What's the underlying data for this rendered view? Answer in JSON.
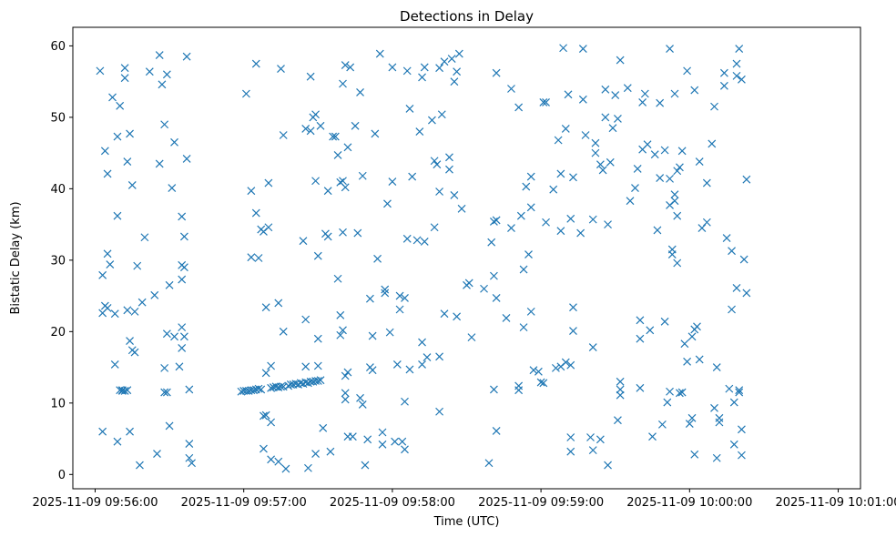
{
  "chart_data": {
    "type": "scatter",
    "title": "Detections in Delay",
    "xlabel": "Time (UTC)",
    "ylabel": "Bistatic Delay (km)",
    "marker": "x",
    "color": "#1f77b4",
    "grid": false,
    "legend": "none",
    "xlim": [
      "2025-11-09 09:55:51",
      "2025-11-09 10:01:09"
    ],
    "ylim": [
      -2.0,
      62.6
    ],
    "x_ticks": [
      "2025-11-09 09:56:00",
      "2025-11-09 09:57:00",
      "2025-11-09 09:58:00",
      "2025-11-09 09:59:00",
      "2025-11-09 10:00:00",
      "2025-11-09 10:01:00"
    ],
    "y_ticks": [
      0,
      10,
      20,
      30,
      40,
      50,
      60
    ],
    "points": [
      [
        "09:56:02",
        56.5
      ],
      [
        "09:56:03",
        22.6
      ],
      [
        "09:56:03",
        6.0
      ],
      [
        "09:56:03",
        27.9
      ],
      [
        "09:56:04",
        23.6
      ],
      [
        "09:56:04",
        45.3
      ],
      [
        "09:56:05",
        30.9
      ],
      [
        "09:56:05",
        42.1
      ],
      [
        "09:56:05",
        23.3
      ],
      [
        "09:56:06",
        29.4
      ],
      [
        "09:56:07",
        52.8
      ],
      [
        "09:56:08",
        22.5
      ],
      [
        "09:56:08",
        15.4
      ],
      [
        "09:56:09",
        47.3
      ],
      [
        "09:56:09",
        36.2
      ],
      [
        "09:56:09",
        4.6
      ],
      [
        "09:56:10",
        51.6
      ],
      [
        "09:56:10",
        11.8
      ],
      [
        "09:56:11",
        11.7
      ],
      [
        "09:56:11",
        11.8
      ],
      [
        "09:56:12",
        55.5
      ],
      [
        "09:56:12",
        56.9
      ],
      [
        "09:56:12",
        11.7
      ],
      [
        "09:56:13",
        11.8
      ],
      [
        "09:56:13",
        23.0
      ],
      [
        "09:56:13",
        43.8
      ],
      [
        "09:56:14",
        18.7
      ],
      [
        "09:56:14",
        6.0
      ],
      [
        "09:56:14",
        47.7
      ],
      [
        "09:56:15",
        17.4
      ],
      [
        "09:56:15",
        40.5
      ],
      [
        "09:56:16",
        22.8
      ],
      [
        "09:56:16",
        17.1
      ],
      [
        "09:56:17",
        29.2
      ],
      [
        "09:56:18",
        1.3
      ],
      [
        "09:56:19",
        24.1
      ],
      [
        "09:56:20",
        33.2
      ],
      [
        "09:56:22",
        56.4
      ],
      [
        "09:56:24",
        25.1
      ],
      [
        "09:56:25",
        2.9
      ],
      [
        "09:56:26",
        43.5
      ],
      [
        "09:56:26",
        58.7
      ],
      [
        "09:56:27",
        54.6
      ],
      [
        "09:56:28",
        49.0
      ],
      [
        "09:56:28",
        14.9
      ],
      [
        "09:56:28",
        11.5
      ],
      [
        "09:56:29",
        11.5
      ],
      [
        "09:56:29",
        19.7
      ],
      [
        "09:56:29",
        56.0
      ],
      [
        "09:56:30",
        6.8
      ],
      [
        "09:56:30",
        26.5
      ],
      [
        "09:56:31",
        40.1
      ],
      [
        "09:56:32",
        46.5
      ],
      [
        "09:56:32",
        19.3
      ],
      [
        "09:56:34",
        15.1
      ],
      [
        "09:56:35",
        29.3
      ],
      [
        "09:56:35",
        20.6
      ],
      [
        "09:56:35",
        36.1
      ],
      [
        "09:56:35",
        27.3
      ],
      [
        "09:56:35",
        17.7
      ],
      [
        "09:56:36",
        29.0
      ],
      [
        "09:56:36",
        33.3
      ],
      [
        "09:56:36",
        19.3
      ],
      [
        "09:56:37",
        58.5
      ],
      [
        "09:56:37",
        44.2
      ],
      [
        "09:56:38",
        11.9
      ],
      [
        "09:56:38",
        2.3
      ],
      [
        "09:56:38",
        4.3
      ],
      [
        "09:56:39",
        1.6
      ],
      [
        "09:56:59",
        11.6
      ],
      [
        "09:57:00",
        11.7
      ],
      [
        "09:57:01",
        11.7
      ],
      [
        "09:57:02",
        11.7
      ],
      [
        "09:57:03",
        11.8
      ],
      [
        "09:57:04",
        11.8
      ],
      [
        "09:57:05",
        11.9
      ],
      [
        "09:57:06",
        12.0
      ],
      [
        "09:57:07",
        11.9
      ],
      [
        "09:57:01",
        53.3
      ],
      [
        "09:57:03",
        30.4
      ],
      [
        "09:57:03",
        39.7
      ],
      [
        "09:57:05",
        57.5
      ],
      [
        "09:57:05",
        36.6
      ],
      [
        "09:57:06",
        30.3
      ],
      [
        "09:57:07",
        34.3
      ],
      [
        "09:57:08",
        8.2
      ],
      [
        "09:57:08",
        3.6
      ],
      [
        "09:57:08",
        34.0
      ],
      [
        "09:57:09",
        14.2
      ],
      [
        "09:57:09",
        8.3
      ],
      [
        "09:57:09",
        23.4
      ],
      [
        "09:57:10",
        40.8
      ],
      [
        "09:57:10",
        34.6
      ],
      [
        "09:57:11",
        2.1
      ],
      [
        "09:57:11",
        7.3
      ],
      [
        "09:57:11",
        15.2
      ],
      [
        "09:57:11",
        12.1
      ],
      [
        "09:57:12",
        12.2
      ],
      [
        "09:57:13",
        12.3
      ],
      [
        "09:57:14",
        12.2
      ],
      [
        "09:57:15",
        12.3
      ],
      [
        "09:57:16",
        12.3
      ],
      [
        "09:57:14",
        1.8
      ],
      [
        "09:57:14",
        24.0
      ],
      [
        "09:57:15",
        56.8
      ],
      [
        "09:57:16",
        47.5
      ],
      [
        "09:57:16",
        20.0
      ],
      [
        "09:57:17",
        0.8
      ],
      [
        "09:57:18",
        12.4
      ],
      [
        "09:57:19",
        12.6
      ],
      [
        "09:57:20",
        12.6
      ],
      [
        "09:57:21",
        12.7
      ],
      [
        "09:57:22",
        12.6
      ],
      [
        "09:57:23",
        12.8
      ],
      [
        "09:57:24",
        12.7
      ],
      [
        "09:57:25",
        12.9
      ],
      [
        "09:57:26",
        12.8
      ],
      [
        "09:57:27",
        13.0
      ],
      [
        "09:57:28",
        13.0
      ],
      [
        "09:57:29",
        13.1
      ],
      [
        "09:57:30",
        13.1
      ],
      [
        "09:57:31",
        13.2
      ],
      [
        "09:57:24",
        32.7
      ],
      [
        "09:57:25",
        48.4
      ],
      [
        "09:57:25",
        15.1
      ],
      [
        "09:57:25",
        21.7
      ],
      [
        "09:57:26",
        0.9
      ],
      [
        "09:57:27",
        48.1
      ],
      [
        "09:57:27",
        55.7
      ],
      [
        "09:57:28",
        50.0
      ],
      [
        "09:57:29",
        50.4
      ],
      [
        "09:57:29",
        41.1
      ],
      [
        "09:57:29",
        2.9
      ],
      [
        "09:57:30",
        19.0
      ],
      [
        "09:57:30",
        15.2
      ],
      [
        "09:57:30",
        30.6
      ],
      [
        "09:57:31",
        48.8
      ],
      [
        "09:57:32",
        6.5
      ],
      [
        "09:57:33",
        33.7
      ],
      [
        "09:57:34",
        39.7
      ],
      [
        "09:57:34",
        33.3
      ],
      [
        "09:57:35",
        3.2
      ],
      [
        "09:57:36",
        47.3
      ],
      [
        "09:57:37",
        47.3
      ],
      [
        "09:57:38",
        27.4
      ],
      [
        "09:57:38",
        44.7
      ],
      [
        "09:57:39",
        40.9
      ],
      [
        "09:57:39",
        22.3
      ],
      [
        "09:57:39",
        19.5
      ],
      [
        "09:57:40",
        20.2
      ],
      [
        "09:57:40",
        33.9
      ],
      [
        "09:57:40",
        41.1
      ],
      [
        "09:57:40",
        54.7
      ],
      [
        "09:57:41",
        40.2
      ],
      [
        "09:57:41",
        13.8
      ],
      [
        "09:57:41",
        11.4
      ],
      [
        "09:57:41",
        10.5
      ],
      [
        "09:57:41",
        57.3
      ],
      [
        "09:57:42",
        45.8
      ],
      [
        "09:57:42",
        14.3
      ],
      [
        "09:57:43",
        57.0
      ],
      [
        "09:57:42",
        5.3
      ],
      [
        "09:57:44",
        5.3
      ],
      [
        "09:57:45",
        48.8
      ],
      [
        "09:57:46",
        33.8
      ],
      [
        "09:57:47",
        10.7
      ],
      [
        "09:57:47",
        53.5
      ],
      [
        "09:57:48",
        41.8
      ],
      [
        "09:57:48",
        9.8
      ],
      [
        "09:57:49",
        1.3
      ],
      [
        "09:57:50",
        4.9
      ],
      [
        "09:57:51",
        24.6
      ],
      [
        "09:57:51",
        15.0
      ],
      [
        "09:57:52",
        14.6
      ],
      [
        "09:57:52",
        19.4
      ],
      [
        "09:57:53",
        47.7
      ],
      [
        "09:57:54",
        30.2
      ],
      [
        "09:57:55",
        58.9
      ],
      [
        "09:57:56",
        5.9
      ],
      [
        "09:57:56",
        4.2
      ],
      [
        "09:57:57",
        25.4
      ],
      [
        "09:57:57",
        25.9
      ],
      [
        "09:57:58",
        37.9
      ],
      [
        "09:57:59",
        19.9
      ],
      [
        "09:58:00",
        57.0
      ],
      [
        "09:58:00",
        41.0
      ],
      [
        "09:58:01",
        4.6
      ],
      [
        "09:58:02",
        15.4
      ],
      [
        "09:58:03",
        25.0
      ],
      [
        "09:58:03",
        23.1
      ],
      [
        "09:58:04",
        4.6
      ],
      [
        "09:58:05",
        3.5
      ],
      [
        "09:58:05",
        24.7
      ],
      [
        "09:58:05",
        10.2
      ],
      [
        "09:58:06",
        56.5
      ],
      [
        "09:58:06",
        33.0
      ],
      [
        "09:58:07",
        51.2
      ],
      [
        "09:58:07",
        14.7
      ],
      [
        "09:58:08",
        41.7
      ],
      [
        "09:58:10",
        32.8
      ],
      [
        "09:58:11",
        48.0
      ],
      [
        "09:58:12",
        55.6
      ],
      [
        "09:58:12",
        18.5
      ],
      [
        "09:58:12",
        15.4
      ],
      [
        "09:58:13",
        57.0
      ],
      [
        "09:58:13",
        32.6
      ],
      [
        "09:58:14",
        16.4
      ],
      [
        "09:58:16",
        49.6
      ],
      [
        "09:58:17",
        34.6
      ],
      [
        "09:58:17",
        43.9
      ],
      [
        "09:58:18",
        43.4
      ],
      [
        "09:58:19",
        39.6
      ],
      [
        "09:58:19",
        8.8
      ],
      [
        "09:58:19",
        16.5
      ],
      [
        "09:58:19",
        56.9
      ],
      [
        "09:58:20",
        50.4
      ],
      [
        "09:58:21",
        57.8
      ],
      [
        "09:58:21",
        22.5
      ],
      [
        "09:58:23",
        44.4
      ],
      [
        "09:58:23",
        42.7
      ],
      [
        "09:58:24",
        58.2
      ],
      [
        "09:58:25",
        55.0
      ],
      [
        "09:58:26",
        22.1
      ],
      [
        "09:58:25",
        39.1
      ],
      [
        "09:58:26",
        56.4
      ],
      [
        "09:58:27",
        58.9
      ],
      [
        "09:58:28",
        37.2
      ],
      [
        "09:58:30",
        26.5
      ],
      [
        "09:58:31",
        26.8
      ],
      [
        "09:58:32",
        19.2
      ],
      [
        "09:58:37",
        26.0
      ],
      [
        "09:58:39",
        1.6
      ],
      [
        "09:58:40",
        32.5
      ],
      [
        "09:58:41",
        35.4
      ],
      [
        "09:58:42",
        35.6
      ],
      [
        "09:58:41",
        27.8
      ],
      [
        "09:58:42",
        24.7
      ],
      [
        "09:58:41",
        11.9
      ],
      [
        "09:58:42",
        6.1
      ],
      [
        "09:58:42",
        56.2
      ],
      [
        "09:58:46",
        21.9
      ],
      [
        "09:58:48",
        34.5
      ],
      [
        "09:58:48",
        54.0
      ],
      [
        "09:58:51",
        51.4
      ],
      [
        "09:58:51",
        11.8
      ],
      [
        "09:58:51",
        12.4
      ],
      [
        "09:58:52",
        36.2
      ],
      [
        "09:58:53",
        20.6
      ],
      [
        "09:58:53",
        28.7
      ],
      [
        "09:58:54",
        40.3
      ],
      [
        "09:58:55",
        30.8
      ],
      [
        "09:58:56",
        22.8
      ],
      [
        "09:58:56",
        37.4
      ],
      [
        "09:58:56",
        41.7
      ],
      [
        "09:58:57",
        14.6
      ],
      [
        "09:58:59",
        14.4
      ],
      [
        "09:59:00",
        12.9
      ],
      [
        "09:59:01",
        12.8
      ],
      [
        "09:59:01",
        52.1
      ],
      [
        "09:59:02",
        52.1
      ],
      [
        "09:59:02",
        35.3
      ],
      [
        "09:59:05",
        39.9
      ],
      [
        "09:59:06",
        14.9
      ],
      [
        "09:59:07",
        46.8
      ],
      [
        "09:59:08",
        15.1
      ],
      [
        "09:59:08",
        42.1
      ],
      [
        "09:59:08",
        34.1
      ],
      [
        "09:59:09",
        59.7
      ],
      [
        "09:59:10",
        48.4
      ],
      [
        "09:59:10",
        15.7
      ],
      [
        "09:59:11",
        53.2
      ],
      [
        "09:59:12",
        15.3
      ],
      [
        "09:59:12",
        5.2
      ],
      [
        "09:59:12",
        3.2
      ],
      [
        "09:59:12",
        35.8
      ],
      [
        "09:59:13",
        41.6
      ],
      [
        "09:59:13",
        23.4
      ],
      [
        "09:59:13",
        20.1
      ],
      [
        "09:59:16",
        33.8
      ],
      [
        "09:59:17",
        59.6
      ],
      [
        "09:59:17",
        52.5
      ],
      [
        "09:59:18",
        47.5
      ],
      [
        "09:59:20",
        5.2
      ],
      [
        "09:59:21",
        35.7
      ],
      [
        "09:59:21",
        17.8
      ],
      [
        "09:59:21",
        3.4
      ],
      [
        "09:59:22",
        45.0
      ],
      [
        "09:59:22",
        46.4
      ],
      [
        "09:59:24",
        4.9
      ],
      [
        "09:59:24",
        43.4
      ],
      [
        "09:59:25",
        42.6
      ],
      [
        "09:59:26",
        53.9
      ],
      [
        "09:59:26",
        50.0
      ],
      [
        "09:59:27",
        1.3
      ],
      [
        "09:59:27",
        35.0
      ],
      [
        "09:59:28",
        43.7
      ],
      [
        "09:59:29",
        48.5
      ],
      [
        "09:59:30",
        53.1
      ],
      [
        "09:59:31",
        49.8
      ],
      [
        "09:59:31",
        7.6
      ],
      [
        "09:59:32",
        58.0
      ],
      [
        "09:59:32",
        11.1
      ],
      [
        "09:59:32",
        13.0
      ],
      [
        "09:59:32",
        11.9
      ],
      [
        "09:59:35",
        54.1
      ],
      [
        "09:59:36",
        38.3
      ],
      [
        "09:59:38",
        40.1
      ],
      [
        "09:59:39",
        42.8
      ],
      [
        "09:59:40",
        19.0
      ],
      [
        "09:59:40",
        21.6
      ],
      [
        "09:59:40",
        12.1
      ],
      [
        "09:59:41",
        45.5
      ],
      [
        "09:59:41",
        52.1
      ],
      [
        "09:59:42",
        53.3
      ],
      [
        "09:59:43",
        46.2
      ],
      [
        "09:59:44",
        20.2
      ],
      [
        "09:59:45",
        5.3
      ],
      [
        "09:59:46",
        44.8
      ],
      [
        "09:59:47",
        34.2
      ],
      [
        "09:59:48",
        41.5
      ],
      [
        "09:59:48",
        52.0
      ],
      [
        "09:59:49",
        7.0
      ],
      [
        "09:59:50",
        45.4
      ],
      [
        "09:59:50",
        21.4
      ],
      [
        "09:59:51",
        10.1
      ],
      [
        "09:59:52",
        59.6
      ],
      [
        "09:59:52",
        11.6
      ],
      [
        "09:59:52",
        37.7
      ],
      [
        "09:59:52",
        41.4
      ],
      [
        "09:59:53",
        30.8
      ],
      [
        "09:59:53",
        31.5
      ],
      [
        "09:59:54",
        53.3
      ],
      [
        "09:59:54",
        39.2
      ],
      [
        "09:59:54",
        38.3
      ],
      [
        "09:59:55",
        42.5
      ],
      [
        "09:59:55",
        36.2
      ],
      [
        "09:59:55",
        29.6
      ],
      [
        "09:59:56",
        11.4
      ],
      [
        "09:59:56",
        43.0
      ],
      [
        "09:59:57",
        11.5
      ],
      [
        "09:59:57",
        45.3
      ],
      [
        "09:59:58",
        18.3
      ],
      [
        "09:59:59",
        15.8
      ],
      [
        "09:59:59",
        56.5
      ],
      [
        "10:00:00",
        7.1
      ],
      [
        "10:00:01",
        19.3
      ],
      [
        "10:00:01",
        7.9
      ],
      [
        "10:00:02",
        53.8
      ],
      [
        "10:00:02",
        20.3
      ],
      [
        "10:00:02",
        2.8
      ],
      [
        "10:00:03",
        20.7
      ],
      [
        "10:00:04",
        43.8
      ],
      [
        "10:00:04",
        16.1
      ],
      [
        "10:00:05",
        34.5
      ],
      [
        "10:00:07",
        35.3
      ],
      [
        "10:00:07",
        40.8
      ],
      [
        "10:00:09",
        46.3
      ],
      [
        "10:00:10",
        9.3
      ],
      [
        "10:00:10",
        51.5
      ],
      [
        "10:00:11",
        2.3
      ],
      [
        "10:00:11",
        15.0
      ],
      [
        "10:00:12",
        7.3
      ],
      [
        "10:00:12",
        7.9
      ],
      [
        "10:00:14",
        54.4
      ],
      [
        "10:00:14",
        56.2
      ],
      [
        "10:00:15",
        33.1
      ],
      [
        "10:00:16",
        12.0
      ],
      [
        "10:00:17",
        23.1
      ],
      [
        "10:00:17",
        31.3
      ],
      [
        "10:00:18",
        4.2
      ],
      [
        "10:00:18",
        10.1
      ],
      [
        "10:00:19",
        55.8
      ],
      [
        "10:00:19",
        57.5
      ],
      [
        "10:00:19",
        26.1
      ],
      [
        "10:00:20",
        11.5
      ],
      [
        "10:00:20",
        11.8
      ],
      [
        "10:00:20",
        59.6
      ],
      [
        "10:00:21",
        55.3
      ],
      [
        "10:00:21",
        2.7
      ],
      [
        "10:00:21",
        6.3
      ],
      [
        "10:00:22",
        30.1
      ],
      [
        "10:00:23",
        41.3
      ],
      [
        "10:00:23",
        25.4
      ]
    ]
  }
}
